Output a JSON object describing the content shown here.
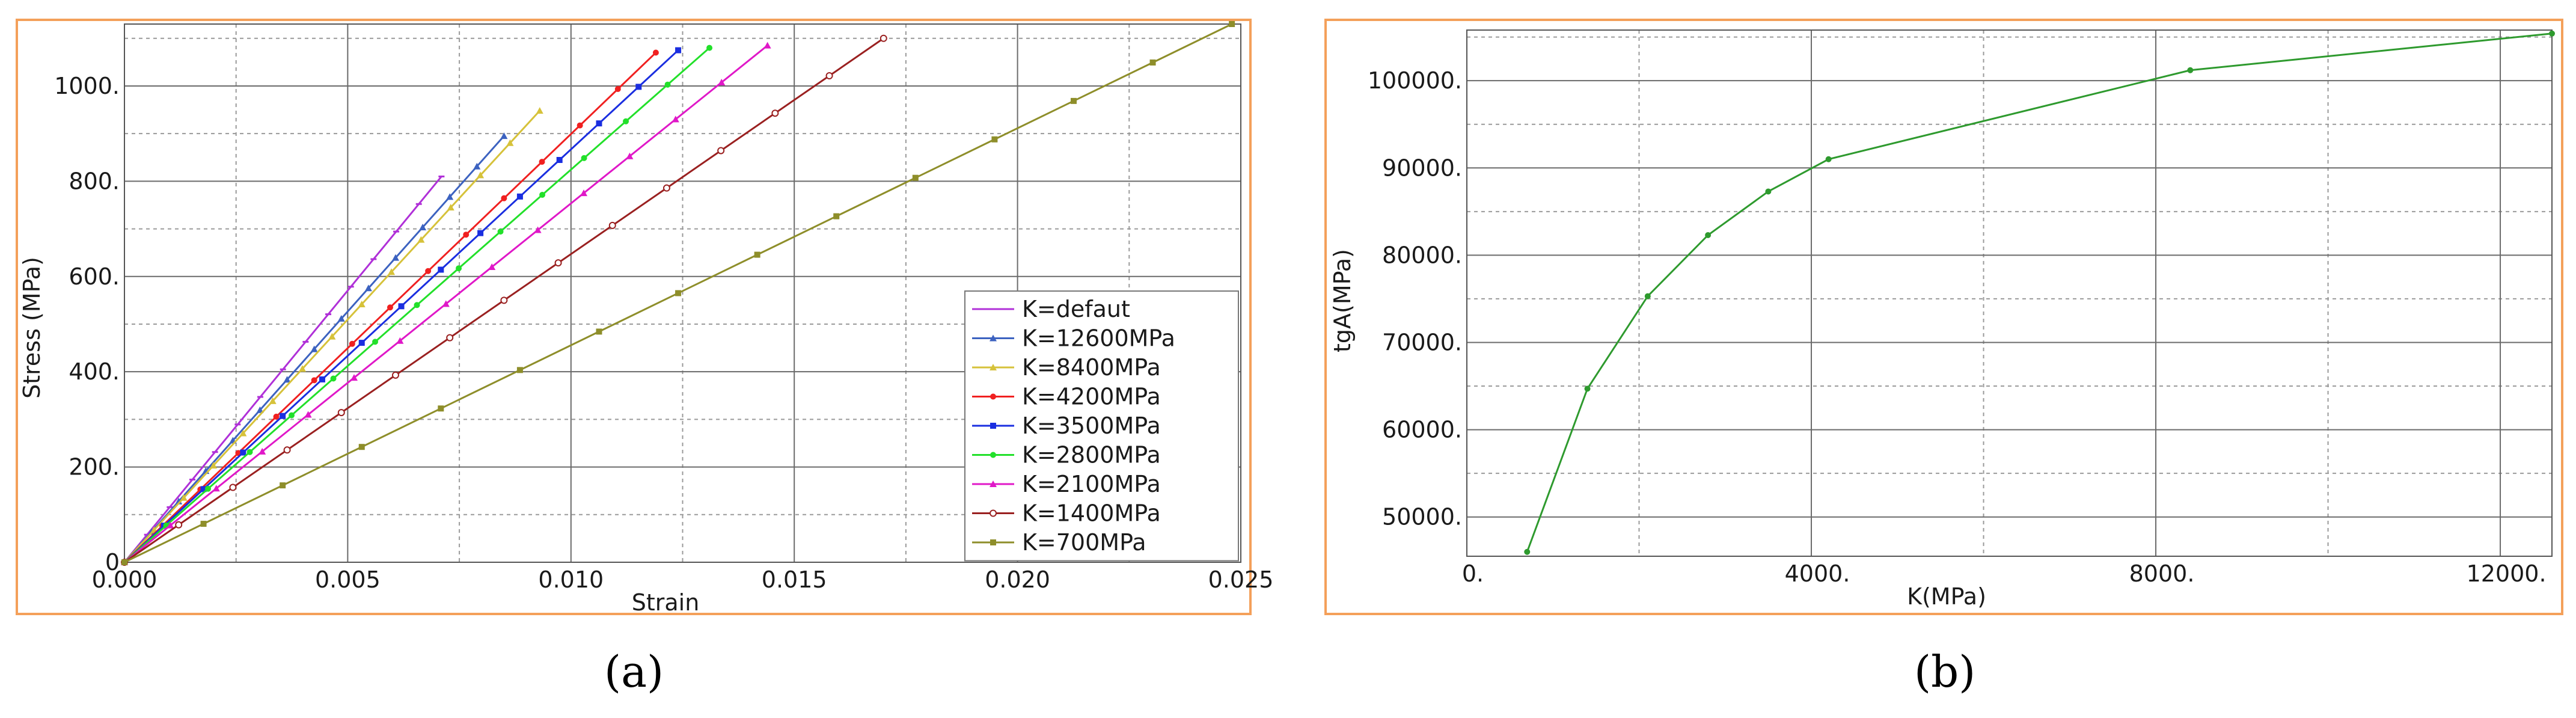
{
  "frame_color": "#F4A05A",
  "caption_a": "(a)",
  "caption_b": "(b)",
  "chart_data": [
    {
      "type": "line",
      "xlabel": "Strain",
      "ylabel": "Stress (MPa)",
      "xlim": [
        0,
        0.025
      ],
      "ylim": [
        0,
        1130
      ],
      "xticks": [
        0,
        0.005,
        0.01,
        0.015,
        0.02,
        0.025
      ],
      "xtick_labels": [
        "0.000",
        "0.005",
        "0.010",
        "0.015",
        "0.020",
        "0.025"
      ],
      "yticks": [
        0,
        200,
        400,
        600,
        800,
        1000
      ],
      "ytick_labels": [
        "0",
        "200.",
        "400.",
        "600.",
        "800.",
        "1000."
      ],
      "grid": true,
      "legend_position": "bottom-right",
      "series": [
        {
          "name": "K=defaut",
          "color": "#B030D8",
          "marker": "dash",
          "end": [
            0.0071,
            810
          ]
        },
        {
          "name": "K=12600MPa",
          "color": "#3C62C0",
          "marker": "triangle",
          "end": [
            0.0085,
            895
          ]
        },
        {
          "name": "K=8400MPa",
          "color": "#D6C23A",
          "marker": "triangle",
          "end": [
            0.0093,
            948
          ]
        },
        {
          "name": "K=4200MPa",
          "color": "#F02020",
          "marker": "dot",
          "end": [
            0.0119,
            1070
          ]
        },
        {
          "name": "K=3500MPa",
          "color": "#1A2EE0",
          "marker": "square",
          "end": [
            0.0124,
            1075
          ]
        },
        {
          "name": "K=2800MPa",
          "color": "#22E02A",
          "marker": "dot",
          "end": [
            0.0131,
            1080
          ]
        },
        {
          "name": "K=2100MPa",
          "color": "#E018C8",
          "marker": "triangle",
          "end": [
            0.0144,
            1085
          ]
        },
        {
          "name": "K=1400MPa",
          "color": "#9A2020",
          "marker": "circle",
          "end": [
            0.017,
            1100
          ]
        },
        {
          "name": "K=700MPa",
          "color": "#8E8E2A",
          "marker": "square",
          "end": [
            0.0248,
            1130
          ]
        }
      ]
    },
    {
      "type": "line",
      "xlabel": "K(MPa)",
      "ylabel": "tgA(MPa)",
      "xlim": [
        0,
        12600
      ],
      "ylim": [
        45500,
        105800
      ],
      "xticks": [
        0,
        4000,
        8000,
        12000
      ],
      "xtick_labels": [
        "0.",
        "4000.",
        "8000.",
        "12000."
      ],
      "yticks": [
        50000,
        60000,
        70000,
        80000,
        90000,
        100000
      ],
      "ytick_labels": [
        "50000.",
        "60000.",
        "70000.",
        "80000.",
        "90000.",
        "100000."
      ],
      "grid": true,
      "series": [
        {
          "color": "#2E9A2E",
          "x": [
            700,
            1400,
            2100,
            2800,
            3500,
            4200,
            8400,
            12600
          ],
          "y": [
            46000,
            64700,
            75300,
            82300,
            87300,
            91000,
            101200,
            105400
          ]
        }
      ]
    }
  ]
}
